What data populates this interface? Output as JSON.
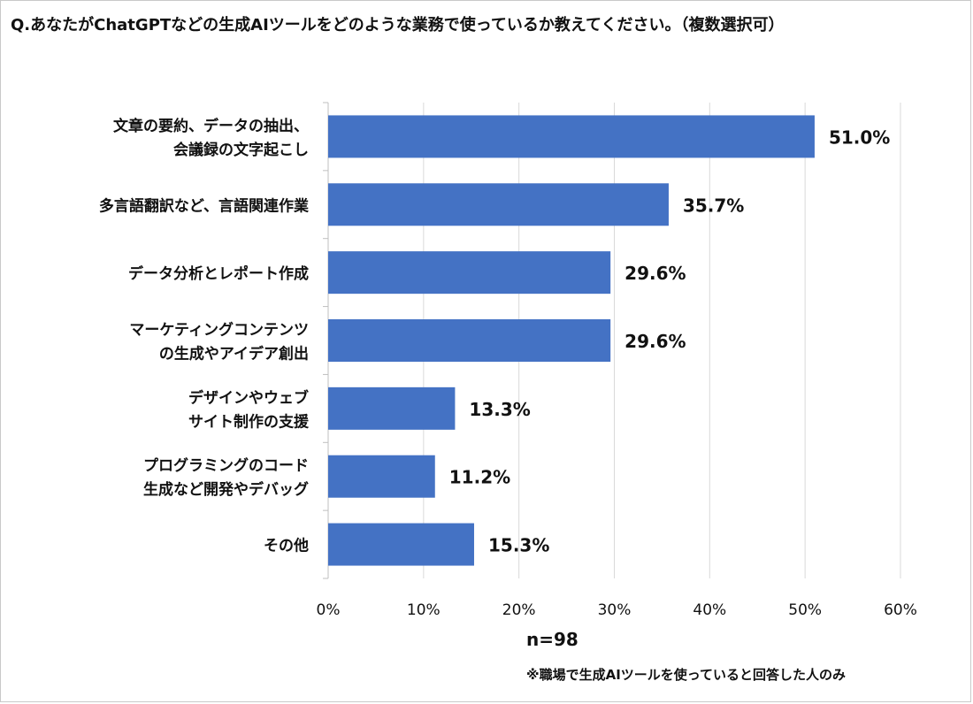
{
  "title": "Q.あなたがChatGPTなどの生成AIツールをどのような業務で使っているか教えてください。（複数選択可）",
  "n_label": "n=98",
  "footnote": "※職場で生成AIツールを使っていると回答した人のみ",
  "colors": {
    "bar": "#4472C4",
    "grid": "#d9d9d9",
    "axis": "#bfbfbf",
    "text": "#111111"
  },
  "chart_data": {
    "type": "bar",
    "orientation": "horizontal",
    "title": "Q.あなたがChatGPTなどの生成AIツールをどのような業務で使っているか教えてください。（複数選択可）",
    "xlabel": "",
    "ylabel": "",
    "categories": [
      [
        "文章の要約、データの抽出、",
        "会議録の文字起こし"
      ],
      [
        "多言語翻訳など、言語関連作業"
      ],
      [
        "データ分析とレポート作成"
      ],
      [
        "マーケティングコンテンツ",
        "の生成やアイデア創出"
      ],
      [
        "デザインやウェブ",
        "サイト制作の支援"
      ],
      [
        "プログラミングのコード",
        "生成など開発やデバッグ"
      ],
      [
        "その他"
      ]
    ],
    "values": [
      51.0,
      35.7,
      29.6,
      29.6,
      13.3,
      11.2,
      15.3
    ],
    "value_labels": [
      "51.0%",
      "35.7%",
      "29.6%",
      "29.6%",
      "13.3%",
      "11.2%",
      "15.3%"
    ],
    "xlim": [
      0,
      60
    ],
    "xticks": [
      0,
      10,
      20,
      30,
      40,
      50,
      60
    ],
    "xtick_labels": [
      "0%",
      "10%",
      "20%",
      "30%",
      "40%",
      "50%",
      "60%"
    ],
    "grid": true,
    "legend": "none"
  }
}
